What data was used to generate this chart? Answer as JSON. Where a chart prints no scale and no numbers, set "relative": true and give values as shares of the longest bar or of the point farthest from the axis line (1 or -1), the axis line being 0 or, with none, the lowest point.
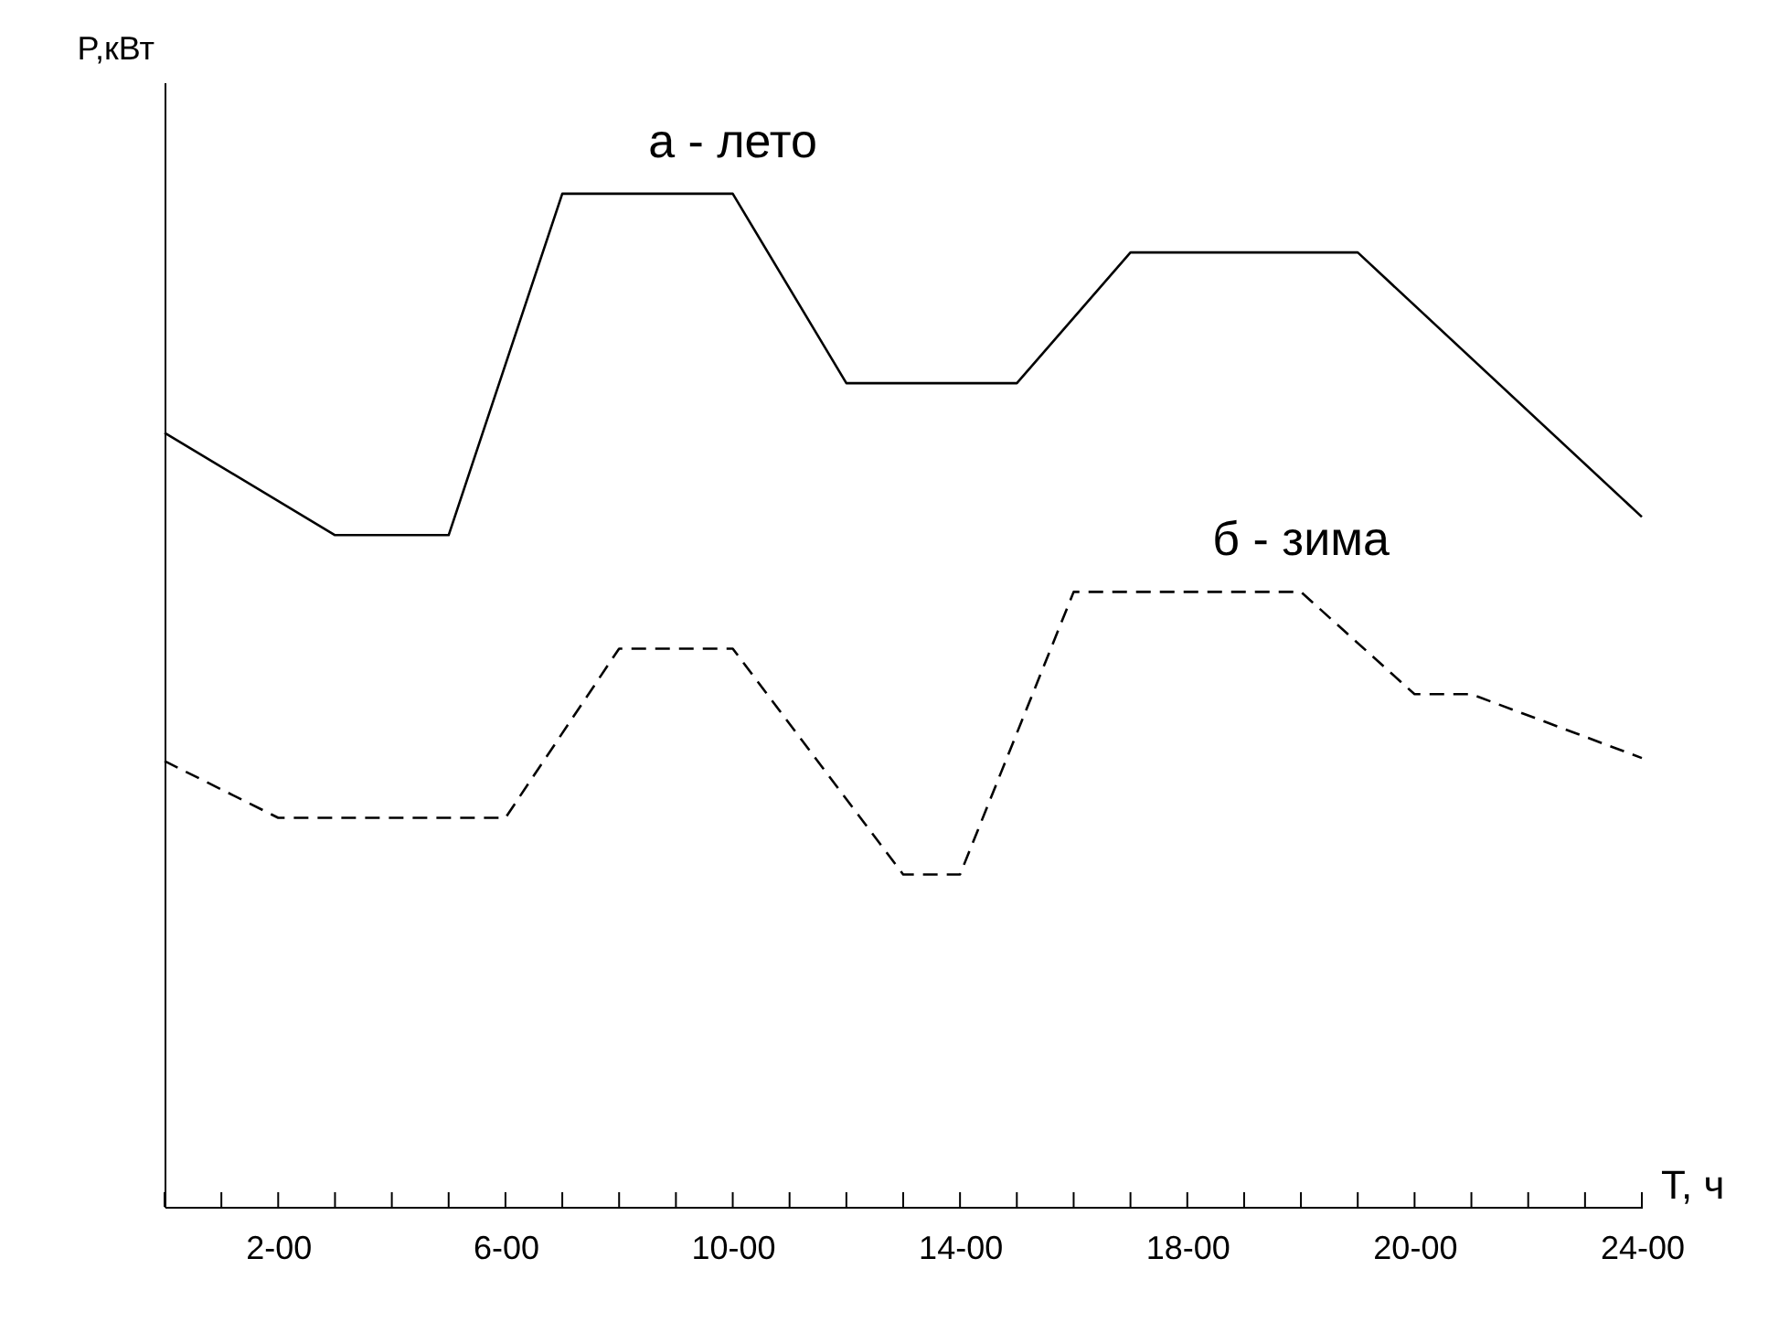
{
  "chart_data": {
    "type": "line",
    "relative": true,
    "xlabel": "T, ч",
    "ylabel": "P,кВт",
    "grid": false,
    "marker": "none",
    "categories": [
      null,
      null,
      "2-00",
      null,
      null,
      null,
      "6-00",
      null,
      null,
      null,
      "10-00",
      null,
      null,
      null,
      "14-00",
      null,
      null,
      null,
      "18-00",
      null,
      null,
      null,
      "20-00",
      null,
      null,
      null,
      "24-00"
    ],
    "series": [
      {
        "name": "а - лето",
        "color": "#000000",
        "line_style": "solid",
        "values": [
          0.764,
          null,
          null,
          0.663,
          null,
          0.663,
          null,
          1,
          null,
          null,
          1,
          null,
          0.813,
          null,
          null,
          0.813,
          null,
          0.942,
          null,
          null,
          null,
          0.942,
          null,
          null,
          null,
          null,
          0.681
        ]
      },
      {
        "name": "б - зима",
        "color": "#000000",
        "line_style": "dashed",
        "values": [
          0.44,
          null,
          0.384,
          null,
          null,
          null,
          0.384,
          null,
          0.551,
          null,
          0.551,
          null,
          null,
          0.328,
          0.328,
          null,
          0.607,
          null,
          null,
          null,
          0.607,
          null,
          0.506,
          0.506,
          null,
          null,
          0.443
        ]
      }
    ]
  }
}
